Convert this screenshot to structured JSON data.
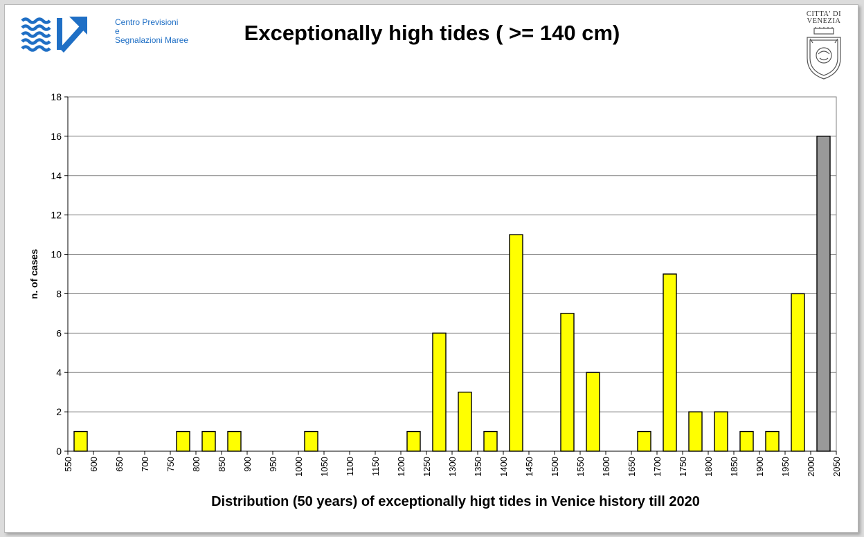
{
  "header": {
    "org_lines": [
      "Centro Previsioni",
      "e",
      "Segnalazioni Maree"
    ],
    "city_lines": [
      "CITTA' DI",
      "VENEZIA"
    ],
    "logo_icon": "wave-arrow-logo-icon",
    "seal_icon": "venice-coat-of-arms-icon"
  },
  "colors": {
    "bar_fill": "#ffff00",
    "last_bar_fill": "#999999",
    "bar_stroke": "#000000",
    "logo_blue": "#1f6fc5"
  },
  "chart_data": {
    "type": "bar",
    "title": "Exceptionally high tides ( >= 140 cm)",
    "xlabel": "Distribution (50 years) of exceptionally higt tides in Venice history till 2020",
    "ylabel": "n. of cases",
    "ylim": [
      0,
      18
    ],
    "yticks": [
      0,
      2,
      4,
      6,
      8,
      10,
      12,
      14,
      16,
      18
    ],
    "xlim": [
      550,
      2050
    ],
    "xticks": [
      550,
      600,
      650,
      700,
      750,
      800,
      850,
      900,
      950,
      1000,
      1050,
      1100,
      1150,
      1200,
      1250,
      1300,
      1350,
      1400,
      1450,
      1500,
      1550,
      1600,
      1650,
      1700,
      1750,
      1800,
      1850,
      1900,
      1950,
      2000,
      2050
    ],
    "grid": true,
    "bars": [
      {
        "x": 575,
        "value": 1
      },
      {
        "x": 775,
        "value": 1
      },
      {
        "x": 825,
        "value": 1
      },
      {
        "x": 875,
        "value": 1
      },
      {
        "x": 1025,
        "value": 1
      },
      {
        "x": 1225,
        "value": 1
      },
      {
        "x": 1275,
        "value": 6
      },
      {
        "x": 1325,
        "value": 3
      },
      {
        "x": 1375,
        "value": 1
      },
      {
        "x": 1425,
        "value": 11
      },
      {
        "x": 1525,
        "value": 7
      },
      {
        "x": 1575,
        "value": 4
      },
      {
        "x": 1675,
        "value": 1
      },
      {
        "x": 1725,
        "value": 9
      },
      {
        "x": 1775,
        "value": 2
      },
      {
        "x": 1825,
        "value": 2
      },
      {
        "x": 1875,
        "value": 1
      },
      {
        "x": 1925,
        "value": 1
      },
      {
        "x": 1975,
        "value": 8
      },
      {
        "x": 2025,
        "value": 16,
        "highlight": true
      }
    ]
  }
}
